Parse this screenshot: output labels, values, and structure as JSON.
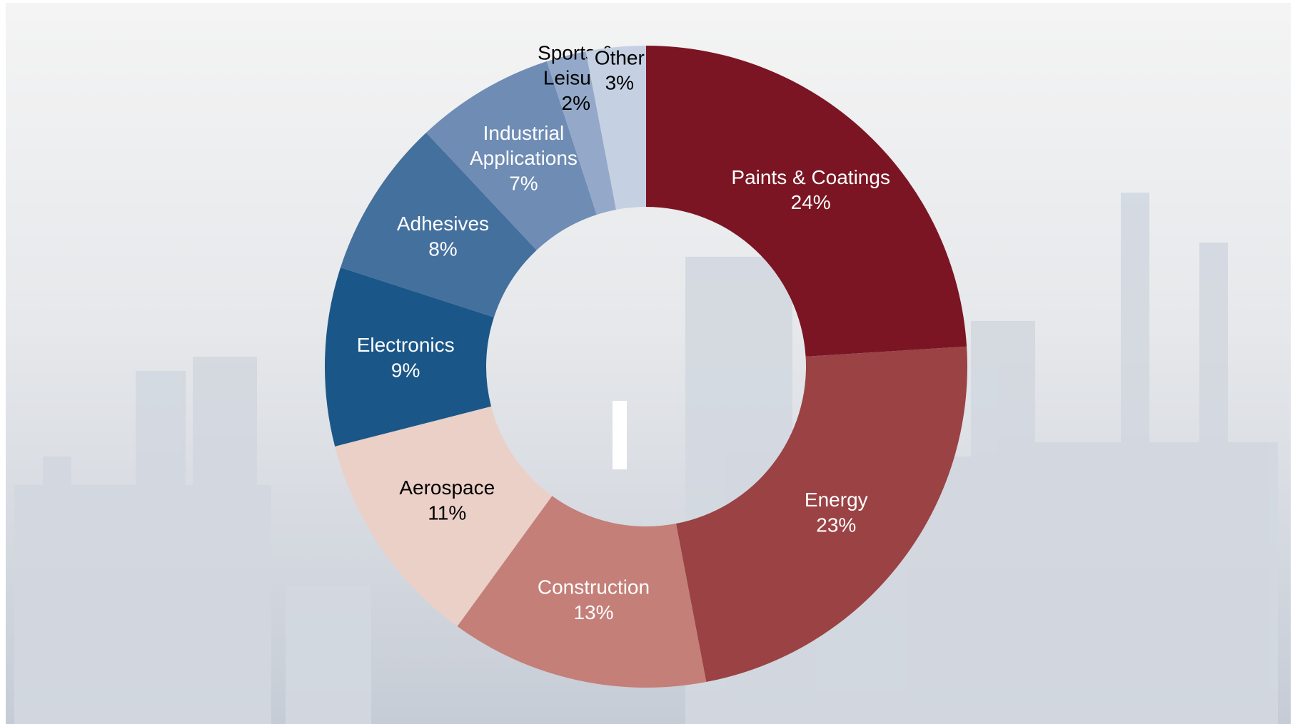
{
  "chart_data": {
    "type": "donut",
    "categories": [
      "Paints & Coatings",
      "Energy",
      "Construction",
      "Aerospace",
      "Electronics",
      "Adhesives",
      "Industrial\nApplications",
      "Sports &\nLeisure",
      "Other"
    ],
    "values": [
      24,
      23,
      13,
      11,
      9,
      8,
      7,
      2,
      3
    ],
    "value_labels": [
      "24%",
      "23%",
      "13%",
      "11%",
      "9%",
      "8%",
      "7%",
      "2%",
      "3%"
    ],
    "colors": [
      "#7b1523",
      "#9a4244",
      "#c47f78",
      "#ebd0c8",
      "#1a5788",
      "#44709e",
      "#6e8cb4",
      "#94a9c9",
      "#c5d1e2"
    ]
  }
}
